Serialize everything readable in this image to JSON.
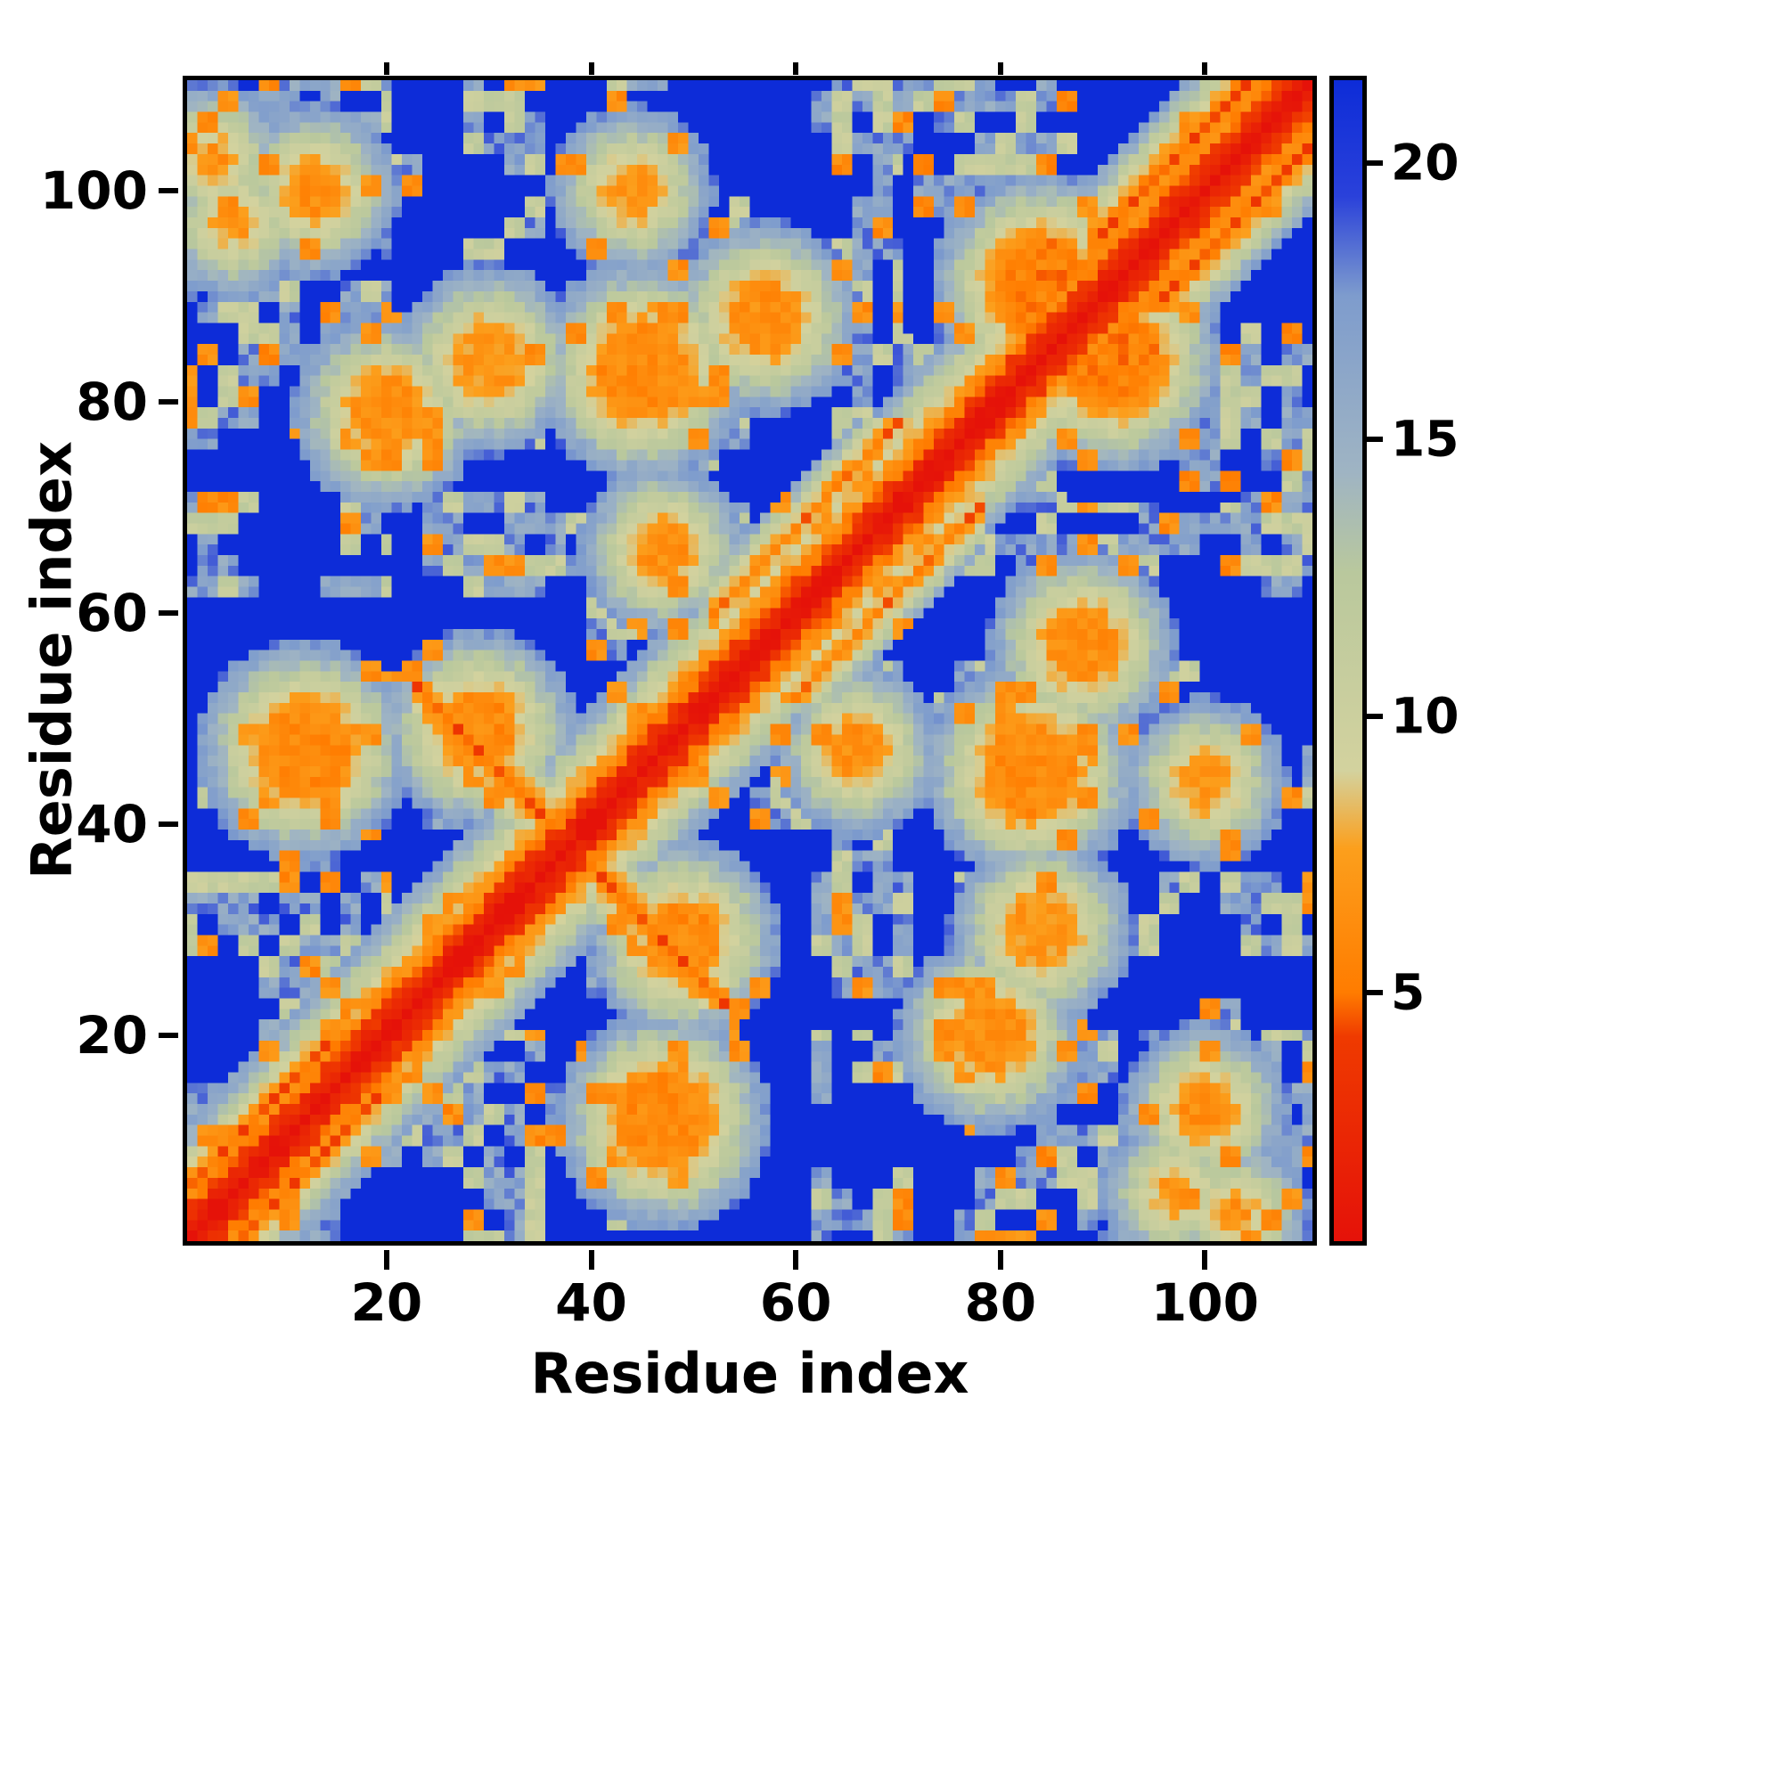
{
  "chart_data": {
    "type": "heatmap",
    "title": "",
    "xlabel": "Residue index",
    "ylabel": "Residue index",
    "matrix_size": 110,
    "axis_range": [
      1,
      110
    ],
    "x_ticks": [
      20,
      40,
      60,
      80,
      100
    ],
    "y_ticks": [
      20,
      40,
      60,
      80,
      100
    ],
    "colorbar_ticks": [
      5,
      10,
      15,
      20
    ],
    "value_range": [
      0.5,
      21.5
    ],
    "legend_position": "right-colorbar",
    "grid": false,
    "diagonal_slope": 1.5,
    "seed": 42,
    "colormap": [
      {
        "v": 0.5,
        "c": "#e51209"
      },
      {
        "v": 4.2,
        "c": "#ef3a00"
      },
      {
        "v": 5.0,
        "c": "#ff7c00"
      },
      {
        "v": 7.6,
        "c": "#fc9f1c"
      },
      {
        "v": 9.0,
        "c": "#d3d29e"
      },
      {
        "v": 12.6,
        "c": "#b9c89d"
      },
      {
        "v": 14.4,
        "c": "#9fb4c3"
      },
      {
        "v": 17.6,
        "c": "#7e9ccd"
      },
      {
        "v": 19.4,
        "c": "#2a41da"
      },
      {
        "v": 21.5,
        "c": "#0d2cd8"
      }
    ],
    "features": [
      {
        "type": "anti",
        "center": 76,
        "range": [
          23,
          53
        ],
        "base": 4.6,
        "weight": 2.2
      },
      {
        "type": "para",
        "offset": 5,
        "range": [
          1,
          19
        ],
        "base": 4.8,
        "weight": 2.2
      },
      {
        "type": "para",
        "offset": 8,
        "range": [
          52,
          78
        ],
        "base": 5.2,
        "weight": 2.6
      },
      {
        "type": "para",
        "offset": 6,
        "range": [
          89,
          110
        ],
        "base": 4.5,
        "weight": 2.0
      },
      {
        "type": "blob",
        "pos": [
          12,
          47
        ],
        "radius": 4,
        "value": 6
      },
      {
        "type": "blob",
        "pos": [
          29,
          49
        ],
        "radius": 3,
        "value": 6
      },
      {
        "type": "blob",
        "pos": [
          45,
          83
        ],
        "radius": 4,
        "value": 6
      },
      {
        "type": "blob",
        "pos": [
          20,
          79
        ],
        "radius": 3,
        "value": 6.5
      },
      {
        "type": "blob",
        "pos": [
          30,
          84
        ],
        "radius": 3,
        "value": 7
      },
      {
        "type": "blob",
        "pos": [
          57,
          88
        ],
        "radius": 3,
        "value": 6.5
      },
      {
        "type": "blob",
        "pos": [
          84,
          91
        ],
        "radius": 4,
        "value": 5.5
      },
      {
        "type": "blob",
        "pos": [
          47,
          66
        ],
        "radius": 2,
        "value": 6.5
      },
      {
        "type": "blob",
        "pos": [
          44,
          100
        ],
        "radius": 2,
        "value": 7
      },
      {
        "type": "blob",
        "pos": [
          13,
          100
        ],
        "radius": 2,
        "value": 6.5
      },
      {
        "type": "blob",
        "pos": [
          5,
          97
        ],
        "radius": 1,
        "value": 6.5
      },
      {
        "type": "blob",
        "pos": [
          3,
          103
        ],
        "radius": 1,
        "value": 6.5
      }
    ],
    "texture_bands": [
      [
        1,
        20
      ],
      [
        28,
        35
      ],
      [
        42,
        52
      ],
      [
        62,
        70
      ],
      [
        76,
        86
      ],
      [
        96,
        110
      ]
    ]
  }
}
